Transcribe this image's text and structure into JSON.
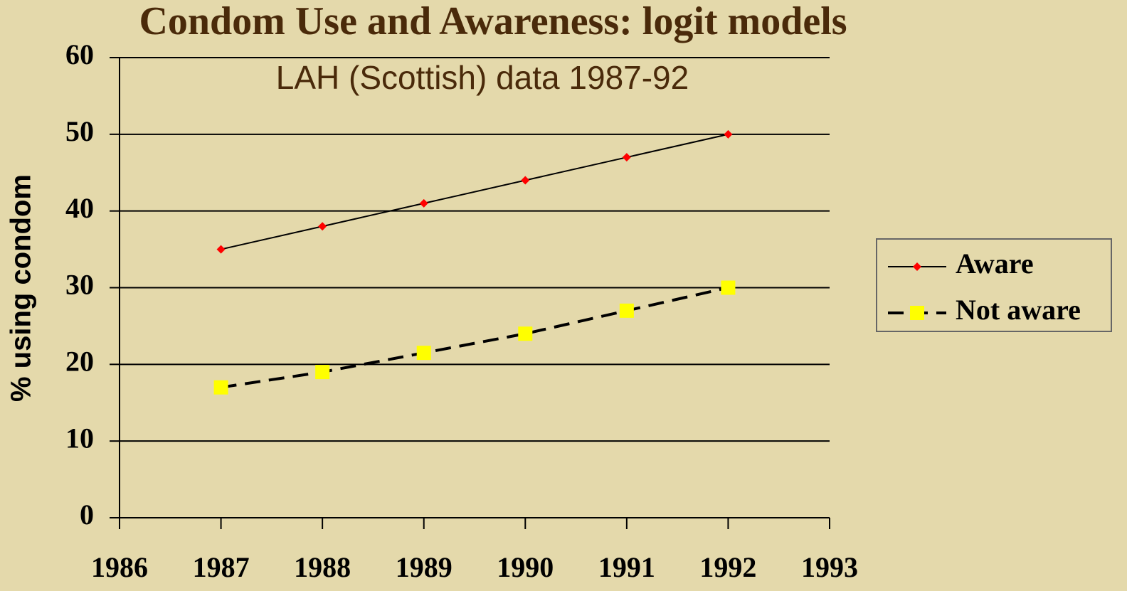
{
  "chart_data": {
    "type": "line",
    "title": "Condom Use and Awareness: logit models",
    "subtitle": "LAH (Scottish) data 1987-92",
    "y_label": "% using condom",
    "x": [
      1987,
      1988,
      1989,
      1990,
      1991,
      1992
    ],
    "series": [
      {
        "name": "Aware",
        "color": "#ff0000",
        "line_color": "#000000",
        "marker": "diamond",
        "dash": false,
        "values": [
          35,
          38,
          41,
          44,
          47,
          50
        ]
      },
      {
        "name": "Not aware",
        "color": "#ffff00",
        "line_color": "#000000",
        "marker": "square",
        "dash": true,
        "values": [
          17,
          19,
          21.5,
          24,
          27,
          30
        ]
      }
    ],
    "xlim": [
      1986,
      1993
    ],
    "xticks": [
      1986,
      1987,
      1988,
      1989,
      1990,
      1991,
      1992,
      1993
    ],
    "ylim": [
      0,
      60
    ],
    "yticks": [
      0,
      10,
      20,
      30,
      40,
      50,
      60
    ],
    "grid": true,
    "legend": "right"
  }
}
